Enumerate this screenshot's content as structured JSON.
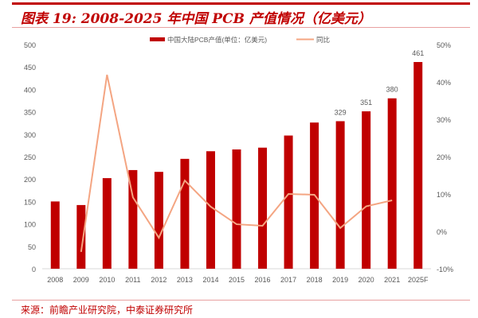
{
  "title": "图表 19:  2008-2025 年中国 PCB 产值情况（亿美元）",
  "source": "来源：前瞻产业研究院，中泰证券研究所",
  "colors": {
    "bar": "#c00000",
    "line": "#f4a582",
    "title": "#c00000"
  },
  "chart_data": {
    "type": "bar+line",
    "categories": [
      "2008",
      "2009",
      "2010",
      "2011",
      "2012",
      "2013",
      "2014",
      "2015",
      "2016",
      "2017",
      "2018",
      "2019",
      "2020",
      "2021",
      "2025F"
    ],
    "series": [
      {
        "name": "中国大陆PCB产值(单位：亿美元)",
        "type": "bar",
        "axis": "left",
        "values": [
          150,
          142,
          202,
          220,
          216,
          245,
          262,
          266,
          270,
          297,
          326,
          329,
          351,
          380,
          461
        ],
        "data_labels": {
          "11": "329",
          "12": "351",
          "13": "380",
          "14": "461"
        }
      },
      {
        "name": "同比",
        "type": "line",
        "axis": "right",
        "values": [
          null,
          -5.5,
          41.9,
          9.1,
          -1.7,
          13.6,
          6.6,
          1.9,
          1.5,
          10.0,
          9.8,
          0.9,
          6.7,
          8.3,
          null
        ]
      }
    ],
    "left_axis": {
      "ylim": [
        0,
        500
      ],
      "ticks": [
        "0",
        "50",
        "100",
        "150",
        "200",
        "250",
        "300",
        "350",
        "400",
        "450",
        "500"
      ]
    },
    "right_axis": {
      "ylim": [
        -10,
        50
      ],
      "ticks": [
        "-10%",
        "0%",
        "10%",
        "20%",
        "30%",
        "40%",
        "50%"
      ]
    },
    "legend": "top",
    "grid": false
  }
}
